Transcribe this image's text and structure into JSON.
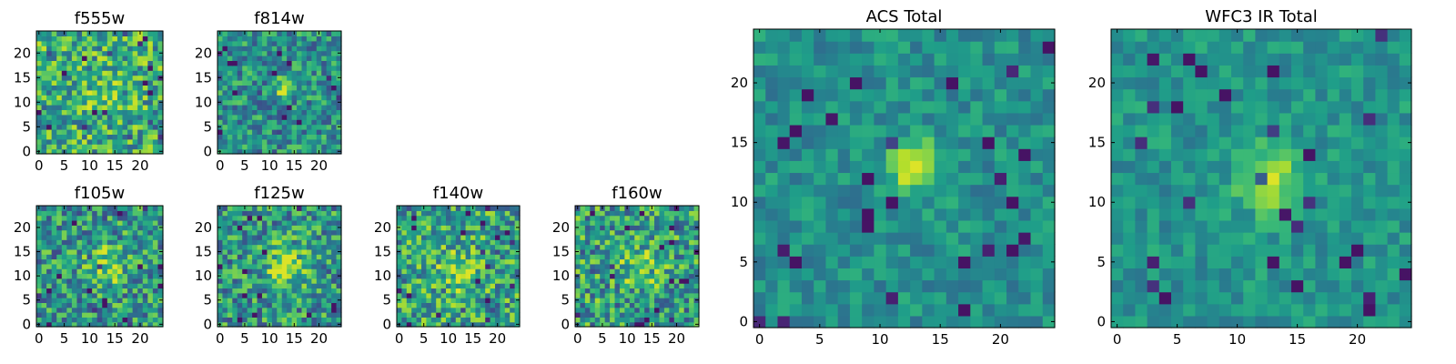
{
  "chart_data": [
    {
      "type": "heatmap",
      "title": "f555w",
      "colormap": "viridis",
      "grid_size": 25,
      "seed": 1,
      "source_blob": {
        "x": 12,
        "y": 12,
        "sigma": 2.2,
        "amp": 0.12
      },
      "value_range": [
        0.05,
        0.95
      ],
      "base_level": 0.62,
      "noise": 0.3,
      "xlim": [
        0,
        24
      ],
      "ylim": [
        0,
        24
      ],
      "xticks": [
        0,
        5,
        10,
        15,
        20
      ],
      "yticks": [
        0,
        5,
        10,
        15,
        20
      ]
    },
    {
      "type": "heatmap",
      "title": "f814w",
      "colormap": "viridis",
      "grid_size": 25,
      "seed": 2,
      "source_blob": {
        "x": 13,
        "y": 13,
        "sigma": 1.3,
        "amp": 0.45
      },
      "value_range": [
        0.05,
        0.95
      ],
      "base_level": 0.5,
      "noise": 0.26,
      "xlim": [
        0,
        24
      ],
      "ylim": [
        0,
        24
      ],
      "xticks": [
        0,
        5,
        10,
        15,
        20
      ],
      "yticks": [
        0,
        5,
        10,
        15,
        20
      ]
    },
    {
      "type": "heatmap",
      "title": "f105w",
      "colormap": "viridis",
      "grid_size": 25,
      "seed": 3,
      "source_blob": {
        "x": 13,
        "y": 12,
        "sigma": 3.0,
        "amp": 0.3
      },
      "value_range": [
        0.05,
        0.95
      ],
      "base_level": 0.52,
      "noise": 0.3,
      "xlim": [
        0,
        24
      ],
      "ylim": [
        0,
        24
      ],
      "xticks": [
        0,
        5,
        10,
        15,
        20
      ],
      "yticks": [
        0,
        5,
        10,
        15,
        20
      ]
    },
    {
      "type": "heatmap",
      "title": "f125w",
      "colormap": "viridis",
      "grid_size": 25,
      "seed": 4,
      "source_blob": {
        "x": 13,
        "y": 12,
        "sigma": 3.0,
        "amp": 0.35
      },
      "value_range": [
        0.05,
        0.95
      ],
      "base_level": 0.52,
      "noise": 0.3,
      "xlim": [
        0,
        24
      ],
      "ylim": [
        0,
        24
      ],
      "xticks": [
        0,
        5,
        10,
        15,
        20
      ],
      "yticks": [
        0,
        5,
        10,
        15,
        20
      ]
    },
    {
      "type": "heatmap",
      "title": "f140w",
      "colormap": "viridis",
      "grid_size": 25,
      "seed": 5,
      "source_blob": {
        "x": 12,
        "y": 11,
        "sigma": 3.0,
        "amp": 0.25
      },
      "value_range": [
        0.05,
        0.95
      ],
      "base_level": 0.58,
      "noise": 0.3,
      "xlim": [
        0,
        24
      ],
      "ylim": [
        0,
        24
      ],
      "xticks": [
        0,
        5,
        10,
        15,
        20
      ],
      "yticks": [
        0,
        5,
        10,
        15,
        20
      ]
    },
    {
      "type": "heatmap",
      "title": "f160w",
      "colormap": "viridis",
      "grid_size": 25,
      "seed": 6,
      "source_blob": {
        "x": 12,
        "y": 12,
        "sigma": 3.0,
        "amp": 0.25
      },
      "value_range": [
        0.05,
        0.95
      ],
      "base_level": 0.55,
      "noise": 0.32,
      "xlim": [
        0,
        24
      ],
      "ylim": [
        0,
        24
      ],
      "xticks": [
        0,
        5,
        10,
        15,
        20
      ],
      "yticks": [
        0,
        5,
        10,
        15,
        20
      ]
    },
    {
      "type": "heatmap",
      "title": "ACS Total",
      "colormap": "viridis",
      "grid_size": 25,
      "seed": 7,
      "source_blob": {
        "x": 13,
        "y": 13,
        "sigma": 1.6,
        "amp": 0.45
      },
      "value_range": [
        0.05,
        0.95
      ],
      "base_level": 0.5,
      "noise": 0.14,
      "xlim": [
        0,
        24
      ],
      "ylim": [
        0,
        24
      ],
      "xticks": [
        0,
        5,
        10,
        15,
        20
      ],
      "yticks": [
        0,
        5,
        10,
        15,
        20
      ]
    },
    {
      "type": "heatmap",
      "title": "WFC3 IR Total",
      "colormap": "viridis",
      "grid_size": 25,
      "seed": 8,
      "source_blob": {
        "x": 13,
        "y": 12,
        "sigma": 2.0,
        "amp": 0.35
      },
      "value_range": [
        0.05,
        0.95
      ],
      "base_level": 0.52,
      "noise": 0.13,
      "xlim": [
        0,
        24
      ],
      "ylim": [
        0,
        24
      ],
      "xticks": [
        0,
        5,
        10,
        15,
        20
      ],
      "yticks": [
        0,
        5,
        10,
        15,
        20
      ]
    }
  ]
}
